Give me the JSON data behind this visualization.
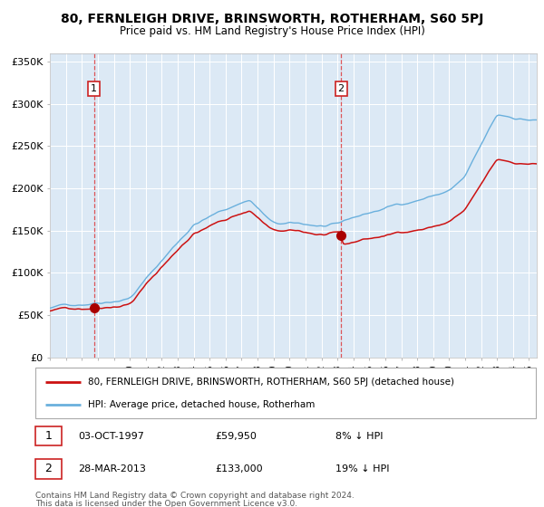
{
  "title1": "80, FERNLEIGH DRIVE, BRINSWORTH, ROTHERHAM, S60 5PJ",
  "title2": "Price paid vs. HM Land Registry's House Price Index (HPI)",
  "bg_color": "#dce9f5",
  "hpi_color": "#6ab0dd",
  "price_color": "#cc1111",
  "marker_color": "#aa0000",
  "point1_date_num": 1997.75,
  "point1_price": 59950,
  "point2_date_num": 2013.23,
  "point2_price": 133000,
  "legend1": "80, FERNLEIGH DRIVE, BRINSWORTH, ROTHERHAM, S60 5PJ (detached house)",
  "legend2": "HPI: Average price, detached house, Rotherham",
  "label1_date": "03-OCT-1997",
  "label1_price": "£59,950",
  "label1_hpi": "8% ↓ HPI",
  "label2_date": "28-MAR-2013",
  "label2_price": "£133,000",
  "label2_hpi": "19% ↓ HPI",
  "footer_line1": "Contains HM Land Registry data © Crown copyright and database right 2024.",
  "footer_line2": "This data is licensed under the Open Government Licence v3.0.",
  "ylim": [
    0,
    360000
  ],
  "yticks": [
    0,
    50000,
    100000,
    150000,
    200000,
    250000,
    300000,
    350000
  ],
  "ytick_labels": [
    "£0",
    "£50K",
    "£100K",
    "£150K",
    "£200K",
    "£250K",
    "£300K",
    "£350K"
  ],
  "xlim_start": 1995.0,
  "xlim_end": 2025.5
}
